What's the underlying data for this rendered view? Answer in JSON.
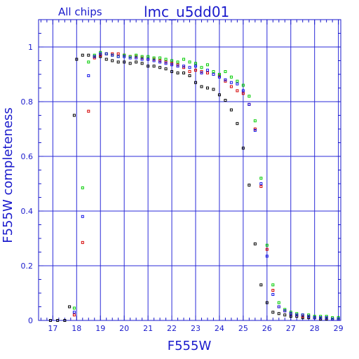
{
  "header": {
    "subset": "All chips",
    "title": "lmc_u5dd01"
  },
  "chart_data": {
    "type": "scatter",
    "xlabel": "F555W",
    "ylabel": "F555W completeness",
    "xlim": [
      16.4,
      29.1
    ],
    "ylim": [
      0,
      1.1
    ],
    "xticks": [
      17,
      18,
      19,
      20,
      21,
      22,
      23,
      24,
      25,
      26,
      27,
      28,
      29
    ],
    "yticks": [
      0,
      0.2,
      0.4,
      0.6,
      0.8,
      1
    ],
    "ytick_labels": [
      "0",
      "0.2",
      "0.4",
      "0.6",
      "0.8",
      "1"
    ],
    "grid": true,
    "legend": "none",
    "colors": {
      "axis": "#1a1acc",
      "grid": "#2a2ad8"
    },
    "series": [
      {
        "color": "#000000",
        "x": [
          16.9,
          17.2,
          17.5,
          17.7,
          17.9,
          18.0,
          18.25,
          18.5,
          18.75,
          19.0,
          19.25,
          19.5,
          19.75,
          20.0,
          20.25,
          20.5,
          20.75,
          21.0,
          21.25,
          21.5,
          21.75,
          22.0,
          22.25,
          22.5,
          22.75,
          23.0,
          23.25,
          23.5,
          23.75,
          24.0,
          24.25,
          24.5,
          24.75,
          25.0,
          25.25,
          25.5,
          25.75,
          26.0,
          26.25,
          26.5,
          26.75,
          27.0,
          27.25,
          27.5,
          27.75,
          28.0,
          28.25,
          28.5,
          28.75,
          29.0
        ],
        "y": [
          0.0,
          0.0,
          0.0,
          0.05,
          0.75,
          0.955,
          0.97,
          0.97,
          0.965,
          0.965,
          0.955,
          0.95,
          0.945,
          0.945,
          0.94,
          0.945,
          0.94,
          0.93,
          0.93,
          0.925,
          0.92,
          0.91,
          0.905,
          0.905,
          0.895,
          0.87,
          0.855,
          0.85,
          0.845,
          0.825,
          0.805,
          0.77,
          0.72,
          0.63,
          0.495,
          0.28,
          0.13,
          0.065,
          0.03,
          0.025,
          0.02,
          0.015,
          0.015,
          0.01,
          0.01,
          0.01,
          0.005,
          0.005,
          0.005,
          0.005
        ]
      },
      {
        "color": "#d40000",
        "x": [
          17.9,
          18.25,
          18.5,
          18.75,
          19.0,
          19.25,
          19.5,
          19.75,
          20.0,
          20.25,
          20.5,
          20.75,
          21.0,
          21.25,
          21.5,
          21.75,
          22.0,
          22.25,
          22.5,
          22.75,
          23.0,
          23.25,
          23.5,
          23.75,
          24.0,
          24.25,
          24.5,
          24.75,
          25.0,
          25.25,
          25.5,
          25.75,
          26.0,
          26.25,
          26.5,
          26.75,
          27.0,
          27.25,
          27.5,
          27.75,
          28.0,
          28.25,
          28.5,
          28.75,
          29.0
        ],
        "y": [
          0.02,
          0.285,
          0.765,
          0.96,
          0.97,
          0.975,
          0.975,
          0.975,
          0.97,
          0.965,
          0.965,
          0.96,
          0.955,
          0.955,
          0.95,
          0.945,
          0.94,
          0.935,
          0.925,
          0.91,
          0.915,
          0.91,
          0.905,
          0.9,
          0.895,
          0.875,
          0.855,
          0.84,
          0.83,
          0.79,
          0.7,
          0.49,
          0.26,
          0.11,
          0.05,
          0.035,
          0.025,
          0.02,
          0.015,
          0.015,
          0.01,
          0.01,
          0.01,
          0.005,
          0.005
        ]
      },
      {
        "color": "#00cc00",
        "x": [
          17.9,
          18.25,
          18.5,
          18.75,
          19.0,
          19.25,
          19.5,
          19.75,
          20.0,
          20.25,
          20.5,
          20.75,
          21.0,
          21.25,
          21.5,
          21.75,
          22.0,
          22.25,
          22.5,
          22.75,
          23.0,
          23.25,
          23.5,
          23.75,
          24.0,
          24.25,
          24.5,
          24.75,
          25.0,
          25.25,
          25.5,
          25.75,
          26.0,
          26.25,
          26.5,
          26.75,
          27.0,
          27.25,
          27.5,
          27.75,
          28.0,
          28.25,
          28.5,
          28.75,
          29.0
        ],
        "y": [
          0.045,
          0.485,
          0.945,
          0.97,
          0.98,
          0.975,
          0.97,
          0.965,
          0.97,
          0.965,
          0.97,
          0.965,
          0.965,
          0.96,
          0.96,
          0.955,
          0.95,
          0.945,
          0.955,
          0.945,
          0.94,
          0.925,
          0.935,
          0.91,
          0.9,
          0.91,
          0.89,
          0.875,
          0.86,
          0.82,
          0.73,
          0.52,
          0.275,
          0.13,
          0.065,
          0.04,
          0.03,
          0.025,
          0.02,
          0.02,
          0.015,
          0.015,
          0.015,
          0.01,
          0.01
        ]
      },
      {
        "color": "#1414e6",
        "x": [
          17.9,
          18.25,
          18.5,
          18.75,
          19.0,
          19.25,
          19.5,
          19.75,
          20.0,
          20.25,
          20.5,
          20.75,
          21.0,
          21.25,
          21.5,
          21.75,
          22.0,
          22.25,
          22.5,
          22.75,
          23.0,
          23.25,
          23.5,
          23.75,
          24.0,
          24.25,
          24.5,
          24.75,
          25.0,
          25.25,
          25.5,
          25.75,
          26.0,
          26.25,
          26.5,
          26.75,
          27.0,
          27.25,
          27.5,
          27.75,
          28.0,
          28.25,
          28.5,
          28.75,
          29.0
        ],
        "y": [
          0.03,
          0.38,
          0.895,
          0.965,
          0.975,
          0.975,
          0.97,
          0.965,
          0.965,
          0.96,
          0.96,
          0.955,
          0.955,
          0.95,
          0.945,
          0.94,
          0.935,
          0.93,
          0.93,
          0.925,
          0.93,
          0.905,
          0.915,
          0.9,
          0.89,
          0.88,
          0.87,
          0.865,
          0.84,
          0.79,
          0.695,
          0.5,
          0.235,
          0.095,
          0.05,
          0.035,
          0.025,
          0.02,
          0.02,
          0.015,
          0.01,
          0.01,
          0.01,
          0.005,
          0.005
        ]
      }
    ]
  }
}
